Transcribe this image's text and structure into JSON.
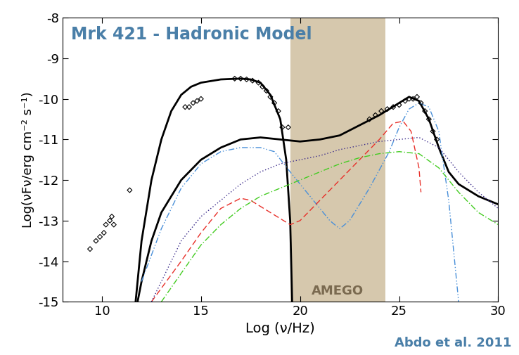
{
  "chart_data": {
    "type": "line",
    "title": "Mrk 421 - Hadronic Model",
    "source": "Abdo et al. 2011",
    "x_label": "Log (ν/Hz)",
    "y_label": "Log(νFν/erg cm⁻² s⁻¹)",
    "xlim": [
      8,
      30
    ],
    "ylim": [
      -15,
      -8
    ],
    "xticks": [
      10,
      15,
      20,
      25,
      30
    ],
    "yticks": [
      -15,
      -14,
      -13,
      -12,
      -11,
      -10,
      -9,
      -8
    ],
    "grid": false,
    "band": {
      "x": [
        19.5,
        24.3
      ],
      "label": "AMEGO",
      "color": "#d6c8ad"
    },
    "series": [
      {
        "type": "scatter",
        "color": "#000000",
        "marker": "diamond",
        "x": [
          9.4,
          9.7,
          9.9,
          10.1,
          10.2,
          10.4,
          10.5,
          10.6,
          11.4,
          14.2,
          14.4,
          14.6,
          14.8,
          15.0,
          16.7,
          17.0,
          17.3,
          17.6,
          17.9,
          18.1,
          18.3,
          18.5,
          18.7,
          18.9,
          19.1,
          19.4,
          23.5,
          23.8,
          24.1,
          24.4,
          24.7,
          25.0,
          25.3,
          25.5,
          25.7,
          25.9,
          26.1,
          26.3,
          26.5,
          26.7,
          26.9
        ],
        "values": [
          -13.7,
          -13.5,
          -13.4,
          -13.3,
          -13.1,
          -13.0,
          -12.9,
          -13.1,
          -12.25,
          -10.2,
          -10.2,
          -10.1,
          -10.05,
          -10.0,
          -9.5,
          -9.5,
          -9.52,
          -9.55,
          -9.6,
          -9.7,
          -9.8,
          -9.95,
          -10.1,
          -10.3,
          -10.7,
          -10.7,
          -10.5,
          -10.4,
          -10.3,
          -10.25,
          -10.2,
          -10.15,
          -10.05,
          -10.0,
          -10.0,
          -9.95,
          -10.1,
          -10.3,
          -10.5,
          -10.8,
          -11.0
        ]
      },
      {
        "type": "line",
        "color": "#000000",
        "line_style": "solid",
        "x": [
          11.7,
          12.0,
          12.5,
          13.0,
          13.5,
          14.0,
          14.5,
          15.0,
          16.0,
          17.0,
          17.5,
          18.0,
          18.5,
          19.0,
          19.3,
          19.5,
          19.6
        ],
        "values": [
          -15.0,
          -13.5,
          -12.0,
          -11.0,
          -10.3,
          -9.9,
          -9.7,
          -9.6,
          -9.52,
          -9.5,
          -9.52,
          -9.6,
          -9.9,
          -10.5,
          -11.5,
          -13.0,
          -15.0
        ]
      },
      {
        "type": "line",
        "color": "#000000",
        "line_style": "solid",
        "x": [
          11.8,
          12.0,
          12.5,
          13.0,
          14.0,
          15.0,
          16.0,
          17.0,
          18.0,
          19.0,
          20.0,
          21.0,
          22.0,
          23.0,
          24.0,
          25.0,
          25.5,
          26.0,
          26.5,
          27.0,
          27.5,
          28.0,
          29.0,
          30.0
        ],
        "values": [
          -15.0,
          -14.5,
          -13.5,
          -12.8,
          -12.0,
          -11.5,
          -11.2,
          -11.0,
          -10.95,
          -11.0,
          -11.05,
          -11.0,
          -10.9,
          -10.65,
          -10.4,
          -10.1,
          -9.95,
          -10.05,
          -10.5,
          -11.2,
          -11.8,
          -12.1,
          -12.4,
          -12.6
        ]
      },
      {
        "type": "line",
        "color": "#4a90d9",
        "line_style": "dash_dot_dot",
        "x": [
          12.0,
          13.0,
          14.0,
          15.0,
          16.0,
          17.0,
          18.0,
          18.7,
          19.5,
          20.5,
          21.5,
          22.0,
          22.5,
          23.5,
          24.5,
          25.0,
          25.5,
          26.0,
          26.5,
          27.0,
          27.5,
          28.0
        ],
        "values": [
          -14.5,
          -13.2,
          -12.2,
          -11.6,
          -11.3,
          -11.2,
          -11.2,
          -11.3,
          -11.8,
          -12.4,
          -13.0,
          -13.2,
          -13.0,
          -12.2,
          -11.3,
          -10.7,
          -10.25,
          -10.1,
          -10.2,
          -10.8,
          -12.5,
          -15.0
        ]
      },
      {
        "type": "line",
        "color": "#e8302a",
        "line_style": "dashed",
        "x": [
          12.5,
          14.0,
          15.0,
          16.0,
          17.0,
          17.5,
          18.5,
          19.5,
          20.0,
          21.0,
          22.0,
          23.0,
          24.0,
          24.7,
          25.2,
          25.6,
          26.0,
          26.1
        ],
        "values": [
          -15.0,
          -14.0,
          -13.3,
          -12.7,
          -12.45,
          -12.5,
          -12.8,
          -13.1,
          -13.0,
          -12.5,
          -12.0,
          -11.5,
          -11.0,
          -10.6,
          -10.55,
          -10.8,
          -11.7,
          -12.3
        ]
      },
      {
        "type": "line",
        "color": "#3a2a8a",
        "line_style": "dotted",
        "x": [
          12.5,
          13.0,
          14.0,
          15.0,
          16.0,
          17.0,
          18.0,
          19.0,
          20.0,
          21.0,
          22.0,
          23.0,
          24.0,
          25.0,
          26.0,
          27.0,
          28.0,
          29.0,
          30.0
        ],
        "values": [
          -15.0,
          -14.5,
          -13.5,
          -12.9,
          -12.5,
          -12.1,
          -11.8,
          -11.6,
          -11.5,
          -11.4,
          -11.25,
          -11.15,
          -11.05,
          -11.0,
          -10.95,
          -11.2,
          -11.8,
          -12.3,
          -12.7
        ]
      },
      {
        "type": "line",
        "color": "#44cc22",
        "line_style": "dash_dot",
        "x": [
          13.0,
          14.0,
          15.0,
          16.0,
          17.0,
          18.0,
          19.0,
          20.0,
          21.0,
          22.0,
          23.0,
          24.0,
          25.0,
          26.0,
          27.0,
          28.0,
          29.0,
          30.0
        ],
        "values": [
          -15.0,
          -14.3,
          -13.6,
          -13.1,
          -12.7,
          -12.4,
          -12.2,
          -12.0,
          -11.8,
          -11.6,
          -11.45,
          -11.35,
          -11.3,
          -11.35,
          -11.7,
          -12.3,
          -12.8,
          -13.1
        ]
      }
    ]
  }
}
